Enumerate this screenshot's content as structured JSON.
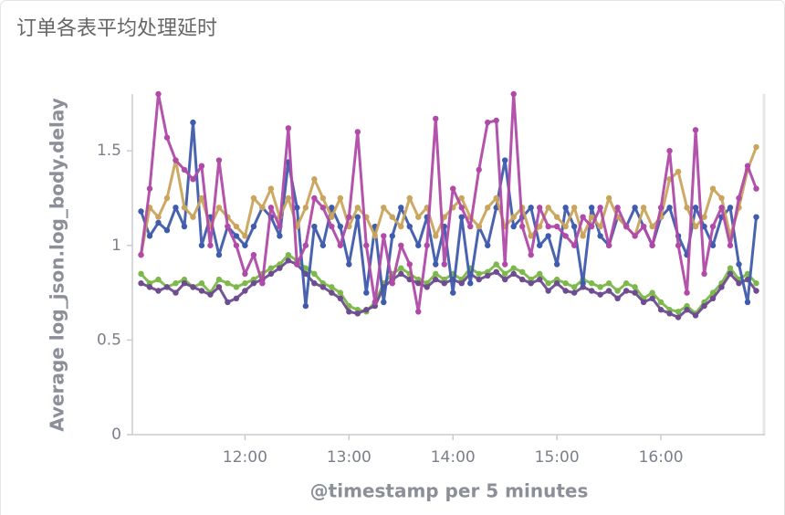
{
  "chart_data": {
    "type": "line",
    "title": "订单各表平均处理延时",
    "y_label": "Average log_json.log_body.delay",
    "x_label": "@timestamp per 5 minutes",
    "xlim": [
      655,
      1020
    ],
    "xticks": [
      {
        "value": 720,
        "label": "12:00"
      },
      {
        "value": 780,
        "label": "13:00"
      },
      {
        "value": 840,
        "label": "14:00"
      },
      {
        "value": 900,
        "label": "15:00"
      },
      {
        "value": 960,
        "label": "16:00"
      }
    ],
    "ylim": [
      0,
      1.8
    ],
    "yticks": [
      0,
      0.5,
      1,
      1.5
    ],
    "x": [
      660,
      665,
      670,
      675,
      680,
      685,
      690,
      695,
      700,
      705,
      710,
      715,
      720,
      725,
      730,
      735,
      740,
      745,
      750,
      755,
      760,
      765,
      770,
      775,
      780,
      785,
      790,
      795,
      800,
      805,
      810,
      815,
      820,
      825,
      830,
      835,
      840,
      845,
      850,
      855,
      860,
      865,
      870,
      875,
      880,
      885,
      890,
      895,
      900,
      905,
      910,
      915,
      920,
      925,
      930,
      935,
      940,
      945,
      950,
      955,
      960,
      965,
      970,
      975,
      980,
      985,
      990,
      995,
      1000,
      1005,
      1010,
      1015
    ],
    "series": [
      {
        "color": "#7cb84a",
        "values": [
          0.85,
          0.8,
          0.82,
          0.78,
          0.8,
          0.82,
          0.78,
          0.8,
          0.75,
          0.82,
          0.8,
          0.78,
          0.8,
          0.82,
          0.85,
          0.88,
          0.9,
          0.95,
          0.92,
          0.88,
          0.85,
          0.8,
          0.78,
          0.75,
          0.68,
          0.66,
          0.65,
          0.7,
          0.8,
          0.85,
          0.88,
          0.85,
          0.82,
          0.8,
          0.85,
          0.82,
          0.85,
          0.82,
          0.88,
          0.85,
          0.86,
          0.9,
          0.85,
          0.88,
          0.86,
          0.82,
          0.85,
          0.8,
          0.82,
          0.8,
          0.78,
          0.82,
          0.8,
          0.78,
          0.8,
          0.76,
          0.8,
          0.78,
          0.72,
          0.75,
          0.7,
          0.66,
          0.65,
          0.68,
          0.64,
          0.7,
          0.75,
          0.8,
          0.88,
          0.82,
          0.85,
          0.8
        ]
      },
      {
        "color": "#6d4c8f",
        "values": [
          0.8,
          0.78,
          0.76,
          0.78,
          0.75,
          0.8,
          0.78,
          0.76,
          0.74,
          0.78,
          0.7,
          0.72,
          0.76,
          0.8,
          0.82,
          0.85,
          0.88,
          0.92,
          0.9,
          0.85,
          0.8,
          0.78,
          0.75,
          0.72,
          0.65,
          0.64,
          0.66,
          0.68,
          0.78,
          0.82,
          0.85,
          0.82,
          0.8,
          0.78,
          0.82,
          0.8,
          0.82,
          0.8,
          0.85,
          0.82,
          0.84,
          0.86,
          0.82,
          0.85,
          0.82,
          0.8,
          0.82,
          0.76,
          0.8,
          0.76,
          0.75,
          0.78,
          0.76,
          0.74,
          0.76,
          0.72,
          0.76,
          0.75,
          0.7,
          0.72,
          0.66,
          0.64,
          0.62,
          0.66,
          0.63,
          0.68,
          0.72,
          0.78,
          0.85,
          0.8,
          0.82,
          0.76
        ]
      },
      {
        "color": "#3f5bad",
        "values": [
          1.18,
          1.05,
          1.12,
          1.08,
          1.2,
          1.1,
          1.65,
          1.0,
          1.15,
          0.95,
          1.1,
          1.05,
          1.0,
          1.1,
          1.2,
          1.15,
          1.05,
          1.44,
          1.2,
          0.68,
          1.1,
          1.0,
          1.2,
          1.1,
          0.9,
          1.15,
          0.75,
          1.1,
          0.7,
          1.05,
          1.2,
          1.1,
          1.0,
          1.15,
          0.9,
          1.1,
          0.75,
          1.15,
          0.8,
          1.1,
          1.0,
          1.2,
          1.45,
          1.1,
          1.15,
          1.2,
          1.0,
          1.05,
          0.9,
          1.2,
          1.1,
          0.8,
          1.2,
          1.05,
          1.0,
          1.15,
          1.1,
          1.2,
          1.1,
          1.0,
          1.15,
          1.2,
          1.05,
          0.95,
          1.2,
          1.1,
          1.0,
          1.15,
          1.2,
          0.9,
          0.7,
          1.15
        ]
      },
      {
        "color": "#c9a45c",
        "values": [
          0.95,
          1.2,
          1.15,
          1.25,
          1.45,
          1.2,
          1.15,
          1.25,
          1.1,
          1.2,
          1.15,
          1.1,
          1.05,
          1.25,
          1.2,
          1.3,
          1.15,
          1.25,
          1.1,
          1.2,
          1.35,
          1.25,
          1.15,
          1.25,
          1.1,
          1.2,
          1.15,
          1.05,
          1.2,
          1.15,
          1.1,
          1.25,
          1.15,
          1.2,
          1.05,
          1.15,
          1.2,
          1.25,
          1.15,
          1.1,
          1.2,
          1.25,
          1.1,
          1.15,
          1.2,
          1.05,
          1.1,
          1.2,
          1.15,
          1.1,
          1.2,
          1.05,
          1.15,
          1.1,
          1.25,
          1.15,
          1.1,
          1.05,
          1.2,
          1.1,
          1.15,
          1.35,
          1.39,
          1.2,
          1.1,
          1.15,
          1.3,
          1.25,
          1.05,
          1.2,
          1.4,
          1.52
        ]
      },
      {
        "color": "#b04aa6",
        "values": [
          0.95,
          1.3,
          1.8,
          1.57,
          1.45,
          1.4,
          1.35,
          1.42,
          1.0,
          1.45,
          1.1,
          1.0,
          0.85,
          0.95,
          0.8,
          1.2,
          1.1,
          1.62,
          0.9,
          1.0,
          1.25,
          1.2,
          1.1,
          1.0,
          1.15,
          1.6,
          1.0,
          0.7,
          1.05,
          0.8,
          1.0,
          0.9,
          0.65,
          1.0,
          1.67,
          0.9,
          1.3,
          1.2,
          1.1,
          1.4,
          1.65,
          1.66,
          0.9,
          1.8,
          1.1,
          0.95,
          1.2,
          1.1,
          1.1,
          1.05,
          1.0,
          1.15,
          1.1,
          1.2,
          1.0,
          1.2,
          1.1,
          1.05,
          1.1,
          1.0,
          1.2,
          1.5,
          1.0,
          0.75,
          1.61,
          0.85,
          1.1,
          1.2,
          1.0,
          1.25,
          1.42,
          1.3
        ]
      }
    ]
  }
}
